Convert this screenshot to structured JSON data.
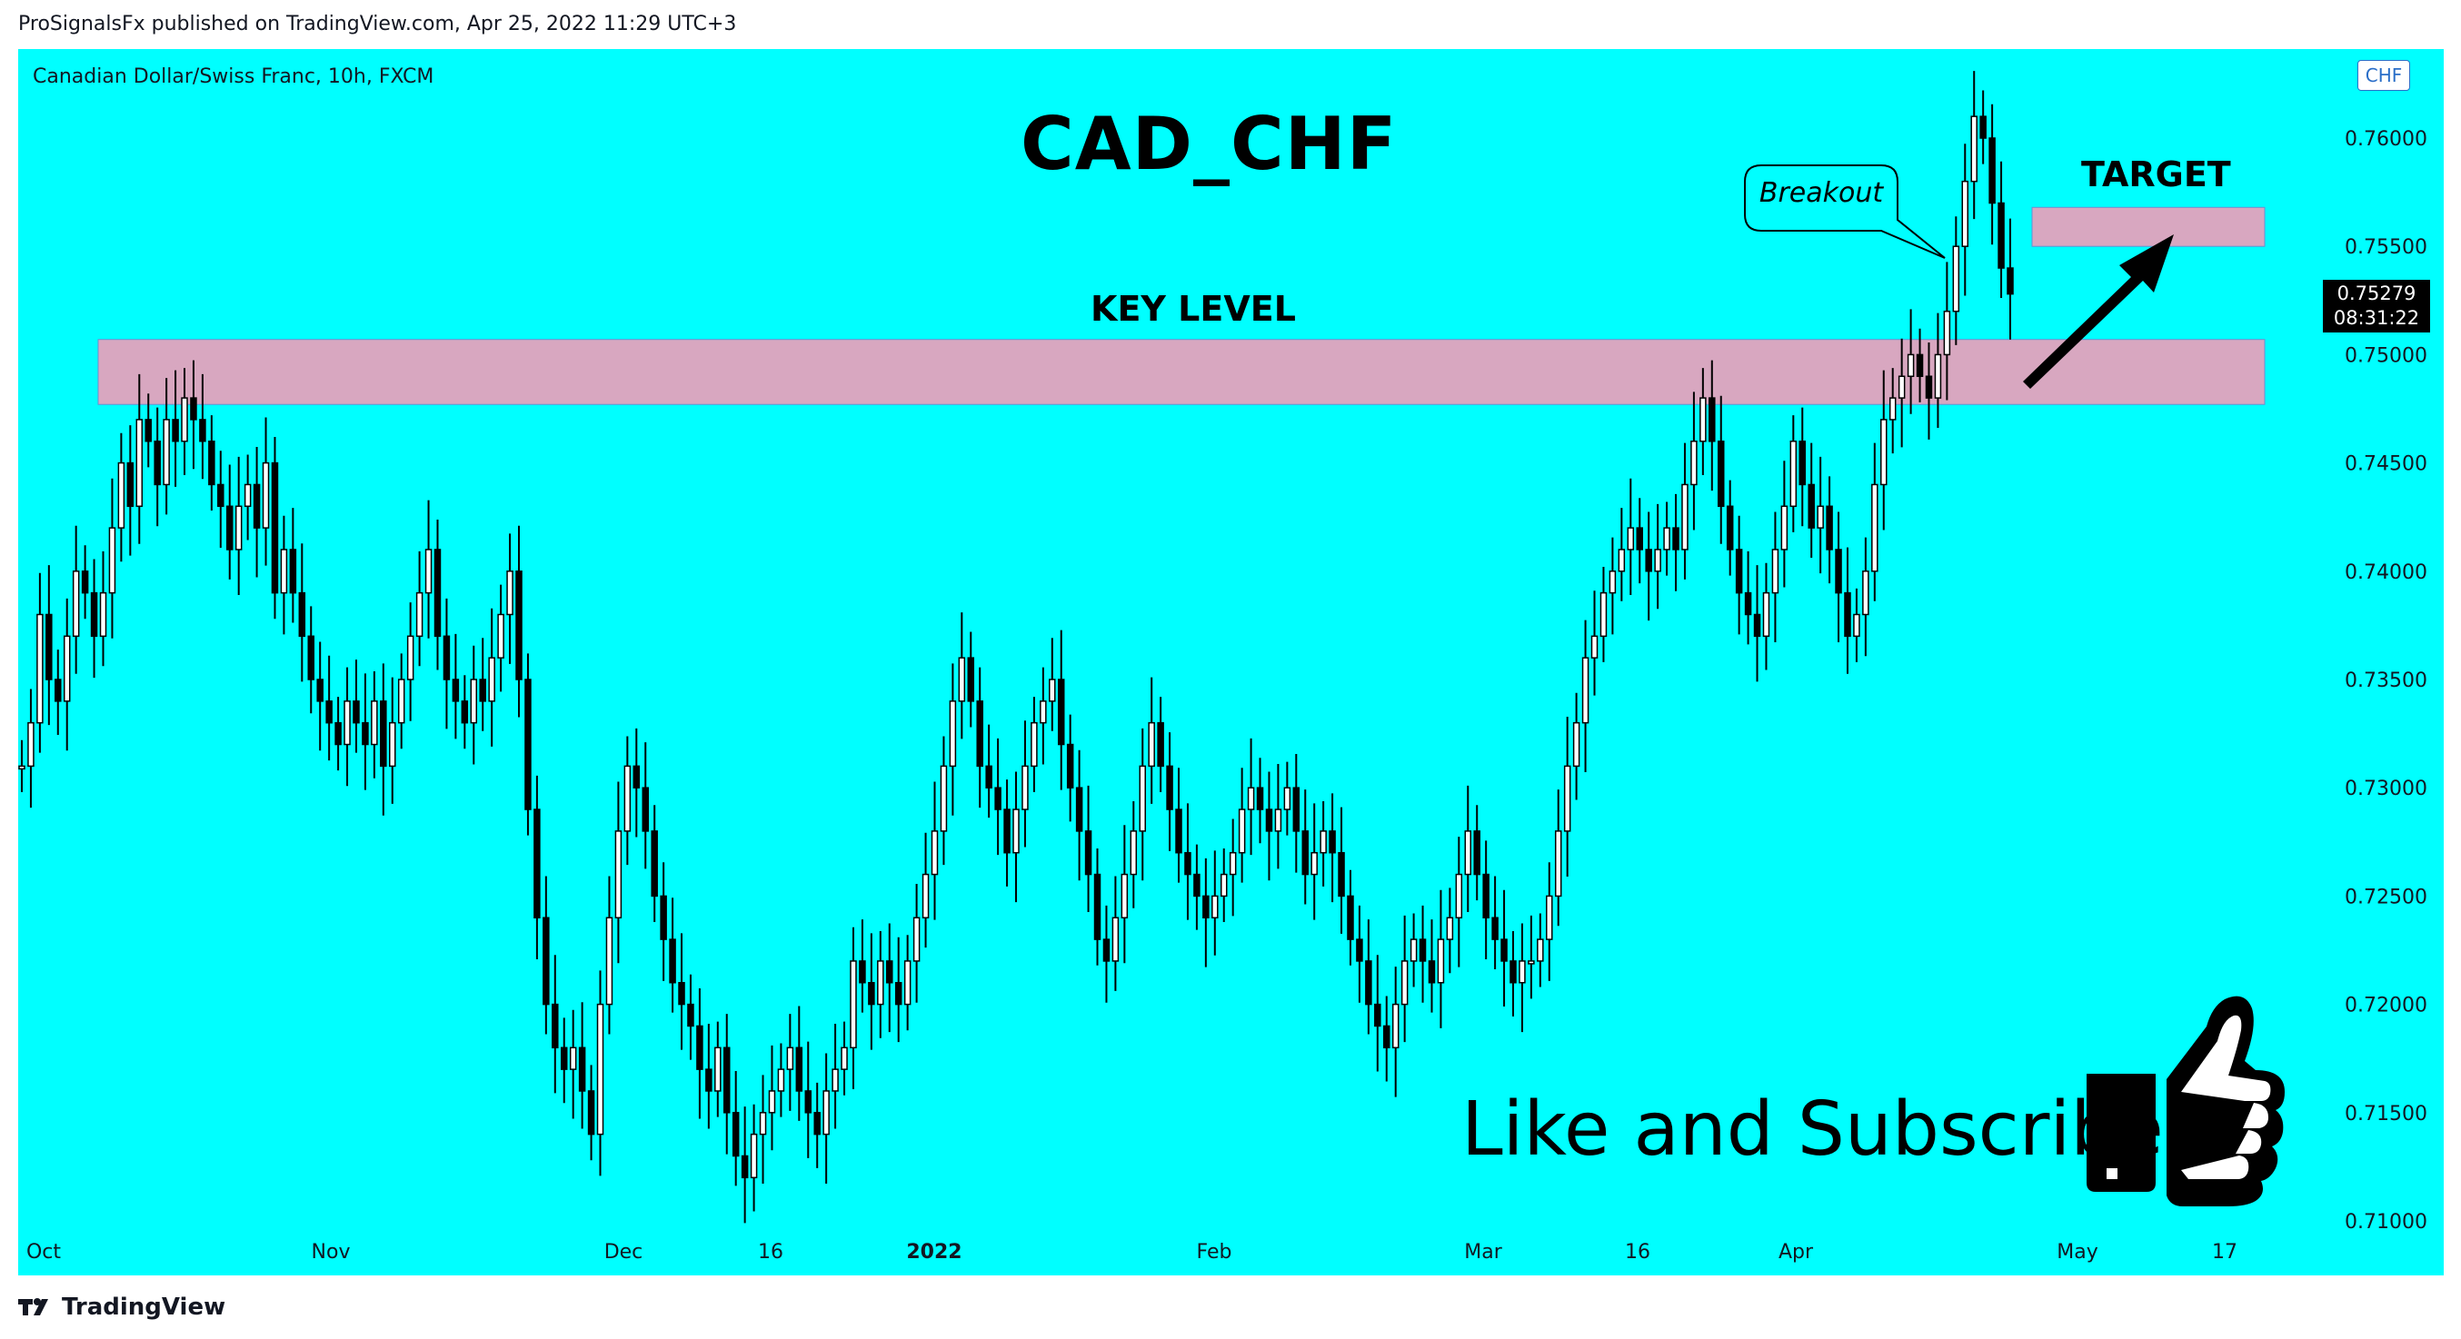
{
  "header": {
    "published_text": "ProSignalsFx published on TradingView.com, Apr 25, 2022 11:29 UTC+3"
  },
  "symbol": {
    "description": "Canadian Dollar/Swiss Franc, 10h, FXCM",
    "currency": "CHF"
  },
  "annotations": {
    "title": "CAD_CHF",
    "key_level": "KEY LEVEL",
    "target": "TARGET",
    "breakout": "Breakout",
    "like_subscribe": "Like and Subscribe"
  },
  "price_tag": {
    "price": "0.75279",
    "countdown": "08:31:22"
  },
  "footer": {
    "brand": "TradingView"
  },
  "colors": {
    "background": "#00ffff",
    "zone": "#d8a7c0",
    "candle": "#000000"
  },
  "chart_data": {
    "type": "line",
    "ylim": [
      0.71,
      0.7625
    ],
    "ticks": {
      "y": [
        "0.76000",
        "0.75500",
        "0.75000",
        "0.74500",
        "0.74000",
        "0.73500",
        "0.73000",
        "0.72500",
        "0.72000",
        "0.71500",
        "0.71000"
      ],
      "x": [
        {
          "label": "Oct",
          "bold": false
        },
        {
          "label": "Nov",
          "bold": false
        },
        {
          "label": "Dec",
          "bold": false
        },
        {
          "label": "16",
          "bold": false
        },
        {
          "label": "2022",
          "bold": true
        },
        {
          "label": "Feb",
          "bold": false
        },
        {
          "label": "Mar",
          "bold": false
        },
        {
          "label": "16",
          "bold": false
        },
        {
          "label": "Apr",
          "bold": false
        },
        {
          "label": "May",
          "bold": false
        },
        {
          "label": "17",
          "bold": false
        }
      ]
    },
    "key_level_zone": [
      0.7477,
      0.7507
    ],
    "target_zone": [
      0.755,
      0.7568
    ],
    "series": [
      {
        "values": [
          0.731,
          0.733,
          0.738,
          0.735,
          0.734,
          0.737,
          0.74,
          0.739,
          0.737,
          0.739,
          0.742,
          0.745,
          0.743,
          0.747,
          0.746,
          0.744,
          0.747,
          0.746,
          0.748,
          0.747,
          0.746,
          0.744,
          0.743,
          0.741,
          0.743,
          0.744,
          0.742,
          0.745,
          0.739,
          0.741,
          0.739,
          0.737,
          0.735,
          0.734,
          0.733,
          0.732,
          0.734,
          0.733,
          0.732,
          0.734,
          0.731,
          0.733,
          0.735,
          0.737,
          0.739,
          0.741,
          0.737,
          0.735,
          0.734,
          0.733,
          0.735,
          0.734,
          0.736,
          0.738,
          0.74,
          0.735,
          0.729,
          0.724,
          0.72,
          0.718,
          0.717,
          0.718,
          0.716,
          0.714,
          0.72,
          0.724,
          0.728,
          0.731,
          0.73,
          0.728,
          0.725,
          0.723,
          0.721,
          0.72,
          0.719,
          0.717,
          0.716,
          0.718,
          0.715,
          0.713,
          0.712,
          0.714,
          0.715,
          0.716,
          0.717,
          0.718,
          0.716,
          0.715,
          0.714,
          0.716,
          0.717,
          0.718,
          0.722,
          0.721,
          0.72,
          0.722,
          0.721,
          0.72,
          0.722,
          0.724,
          0.726,
          0.728,
          0.731,
          0.734,
          0.736,
          0.734,
          0.731,
          0.73,
          0.729,
          0.727,
          0.729,
          0.731,
          0.733,
          0.734,
          0.735,
          0.732,
          0.73,
          0.728,
          0.726,
          0.723,
          0.722,
          0.724,
          0.726,
          0.728,
          0.731,
          0.733,
          0.731,
          0.729,
          0.727,
          0.726,
          0.725,
          0.724,
          0.725,
          0.726,
          0.727,
          0.729,
          0.73,
          0.729,
          0.728,
          0.729,
          0.73,
          0.728,
          0.726,
          0.727,
          0.728,
          0.727,
          0.725,
          0.723,
          0.722,
          0.72,
          0.719,
          0.718,
          0.72,
          0.722,
          0.723,
          0.722,
          0.721,
          0.723,
          0.724,
          0.726,
          0.728,
          0.726,
          0.724,
          0.723,
          0.722,
          0.721,
          0.722,
          0.722,
          0.723,
          0.725,
          0.728,
          0.731,
          0.733,
          0.736,
          0.737,
          0.739,
          0.74,
          0.741,
          0.742,
          0.741,
          0.74,
          0.741,
          0.742,
          0.741,
          0.744,
          0.746,
          0.748,
          0.746,
          0.743,
          0.741,
          0.739,
          0.738,
          0.737,
          0.739,
          0.741,
          0.743,
          0.746,
          0.744,
          0.742,
          0.743,
          0.741,
          0.739,
          0.737,
          0.738,
          0.74,
          0.744,
          0.747,
          0.748,
          0.749,
          0.75,
          0.749,
          0.748,
          0.75,
          0.752,
          0.755,
          0.758,
          0.761,
          0.76,
          0.757,
          0.754,
          0.7528
        ]
      }
    ]
  }
}
